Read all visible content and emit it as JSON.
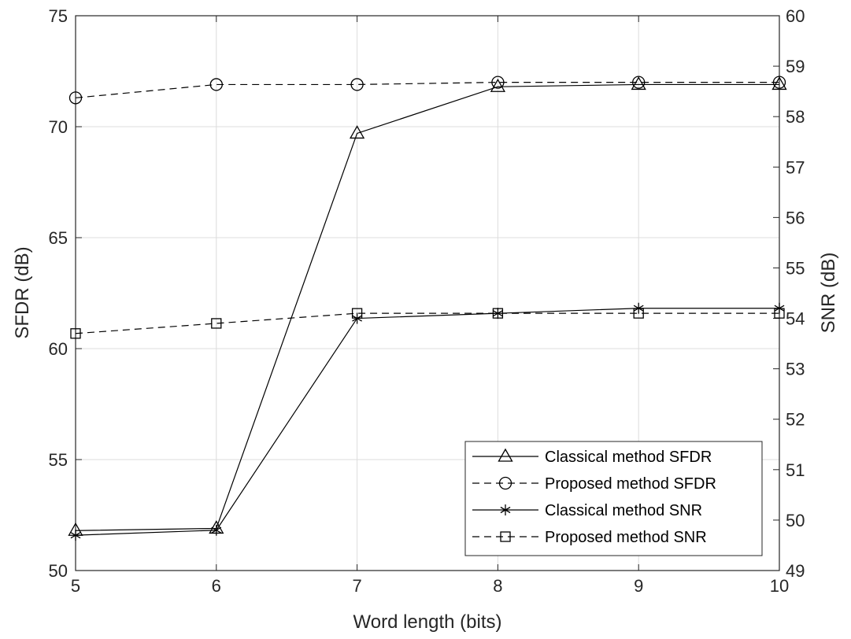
{
  "chart_data": {
    "type": "line",
    "title": "",
    "xlabel": "Word length (bits)",
    "ylabel_left": "SFDR (dB)",
    "ylabel_right": "SNR (dB)",
    "x": [
      5,
      6,
      7,
      8,
      9,
      10
    ],
    "xlim": [
      5,
      10
    ],
    "ylim_left": [
      50,
      75
    ],
    "ylim_right": [
      49,
      60
    ],
    "x_ticks": [
      "5",
      "6",
      "7",
      "8",
      "9",
      "10"
    ],
    "y_ticks_left": [
      "50",
      "55",
      "60",
      "65",
      "70",
      "75"
    ],
    "y_ticks_right": [
      "49",
      "50",
      "51",
      "52",
      "53",
      "54",
      "55",
      "56",
      "57",
      "58",
      "59",
      "60"
    ],
    "grid": true,
    "legend_position": "bottom-right",
    "series": [
      {
        "name": "Classical method SFDR",
        "axis": "left",
        "marker": "triangle",
        "line": "solid",
        "values": [
          51.8,
          51.9,
          69.7,
          71.8,
          71.9,
          71.9
        ]
      },
      {
        "name": "Proposed method SFDR",
        "axis": "left",
        "marker": "circle",
        "line": "dashed",
        "values": [
          71.3,
          71.9,
          71.9,
          72.0,
          72.0,
          72.0
        ]
      },
      {
        "name": "Classical method SNR",
        "axis": "right",
        "marker": "star",
        "line": "solid",
        "values": [
          49.7,
          49.8,
          54.0,
          54.1,
          54.2,
          54.2
        ]
      },
      {
        "name": "Proposed method SNR",
        "axis": "right",
        "marker": "square",
        "line": "dashed",
        "values": [
          53.7,
          53.9,
          54.1,
          54.1,
          54.1,
          54.1
        ]
      }
    ]
  }
}
